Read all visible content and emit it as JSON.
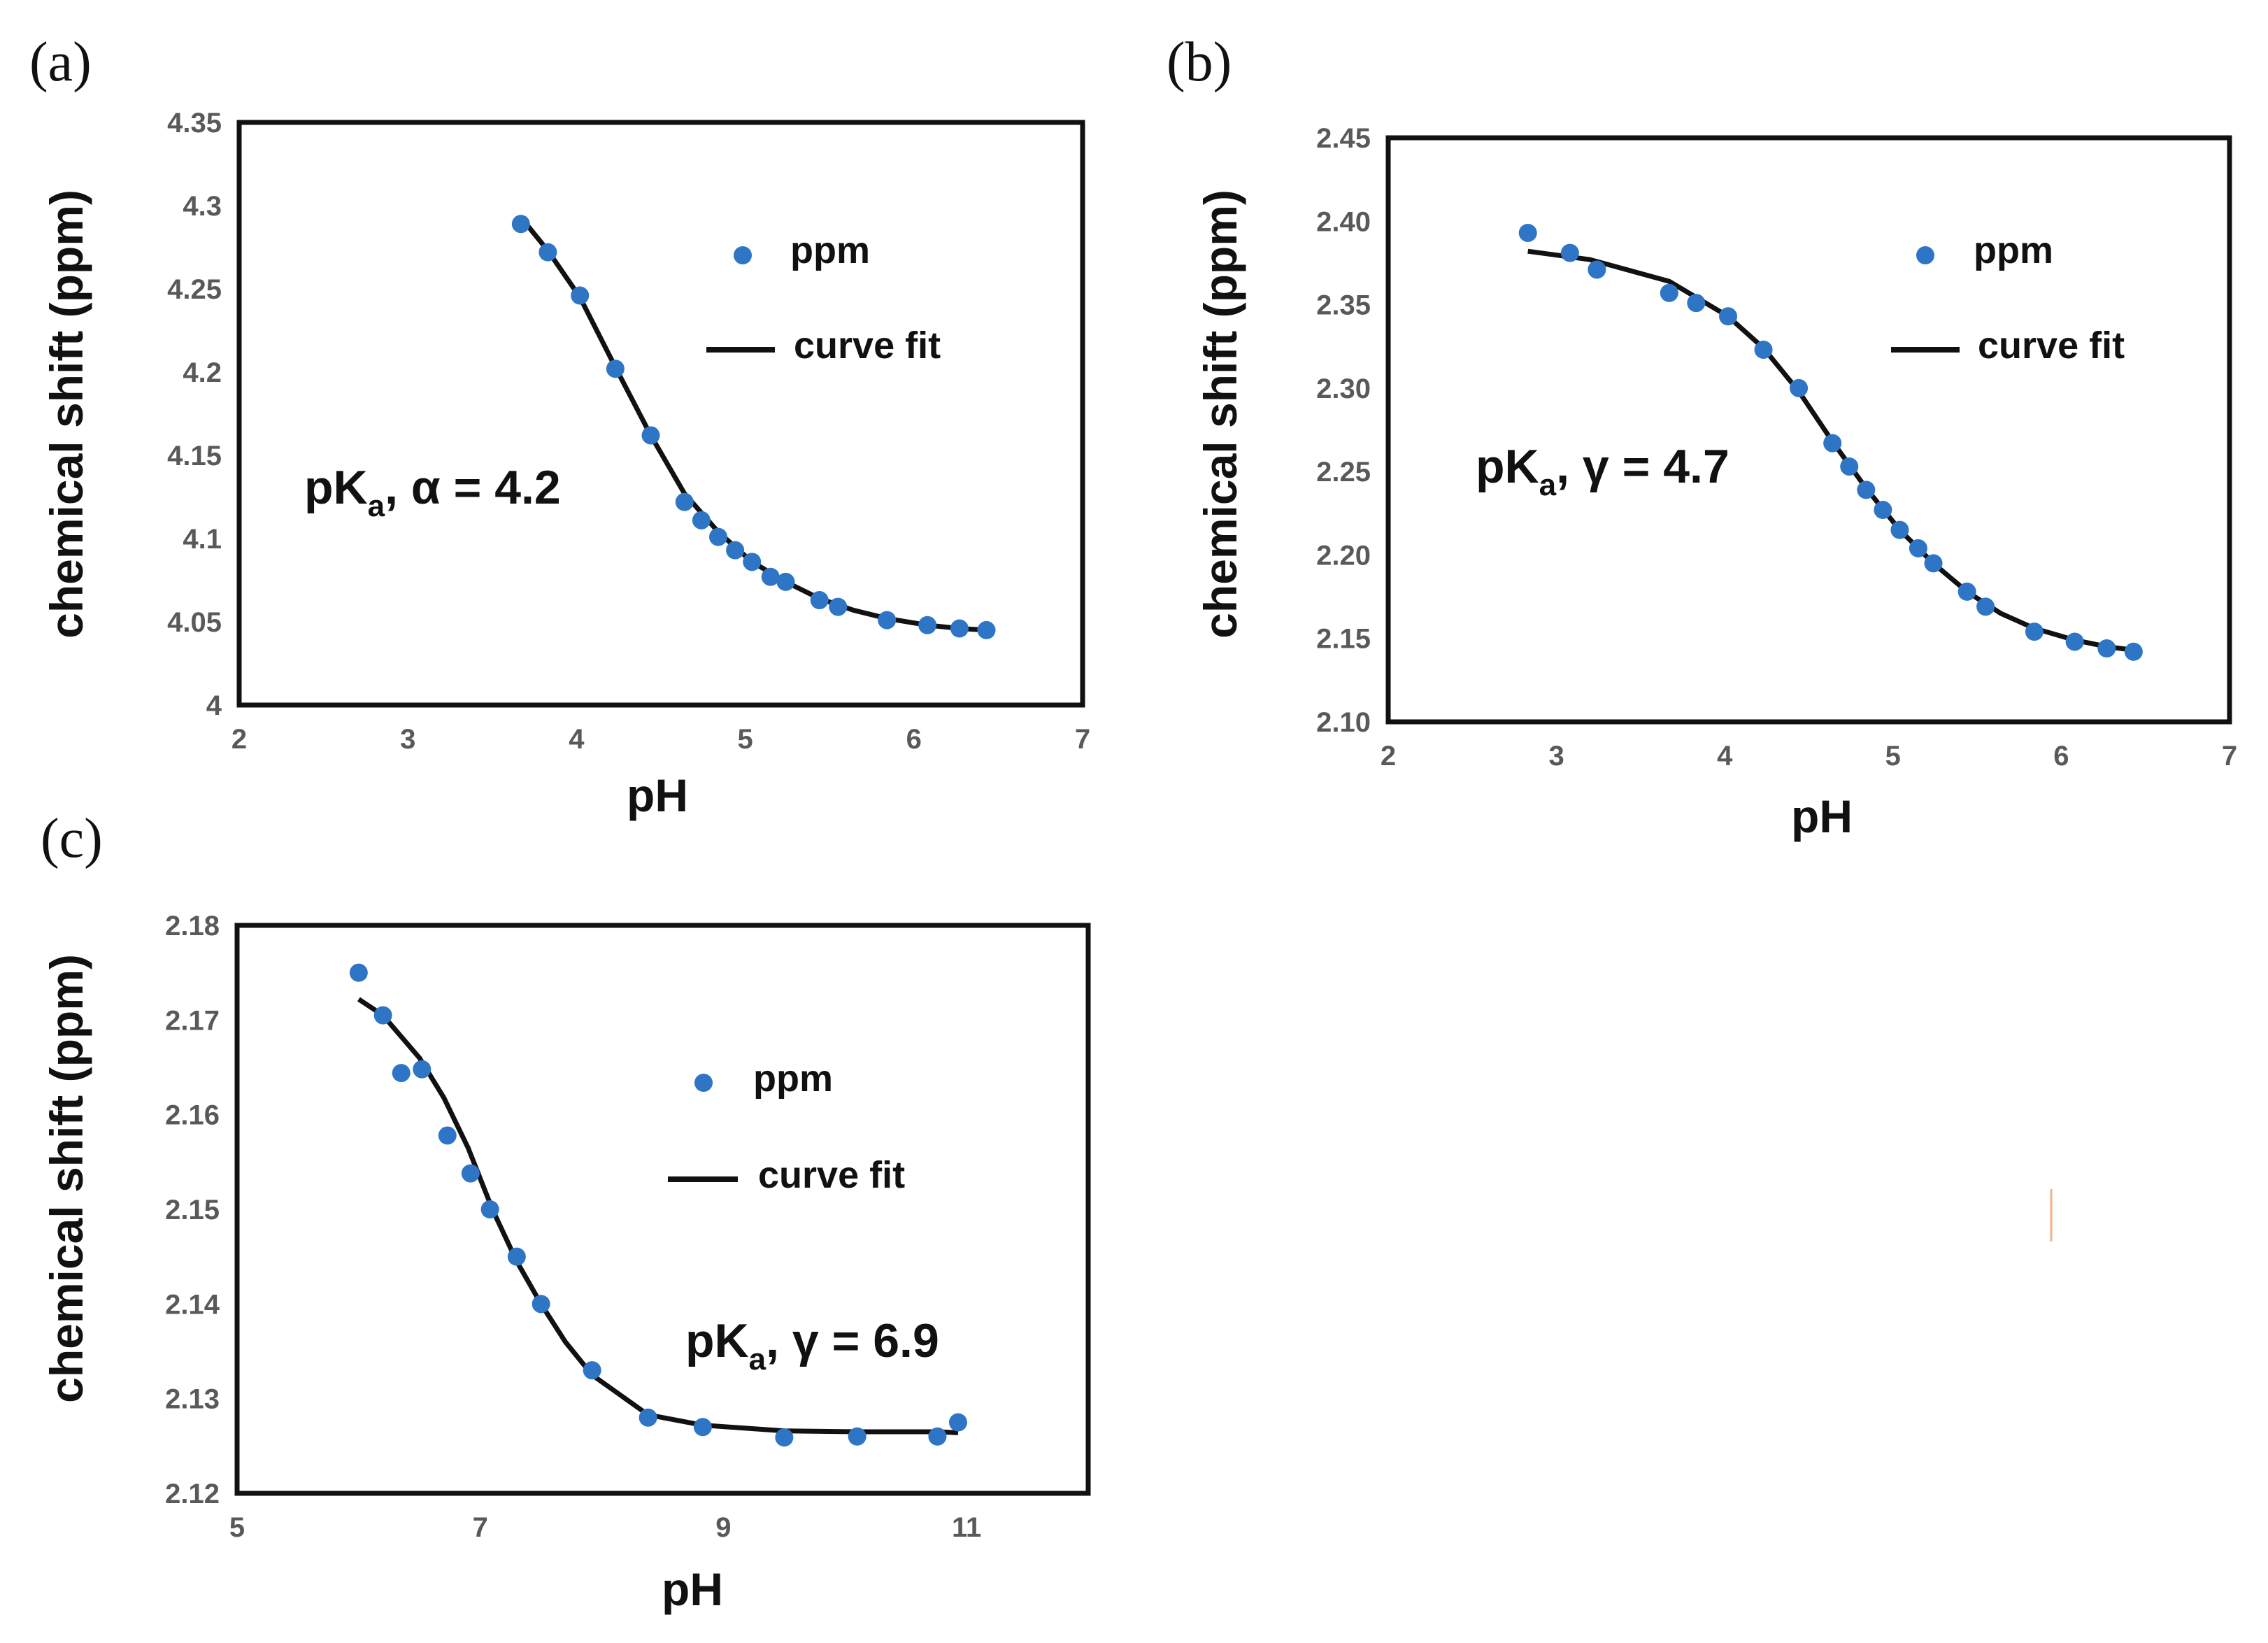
{
  "figure": {
    "panels": [
      {
        "label": "(a)",
        "annotation_prefix": "pK",
        "annotation_sub": "a",
        "annotation_suffix": ", α = 4.2"
      },
      {
        "label": "(b)",
        "annotation_prefix": "pK",
        "annotation_sub": "a",
        "annotation_suffix": ", γ = 4.7"
      },
      {
        "label": "(c)",
        "annotation_prefix": "pK",
        "annotation_sub": "a",
        "annotation_suffix": ", γ = 6.9"
      }
    ]
  },
  "colors": {
    "points": "#2E75C6",
    "fit": "#111111",
    "frame": "#111111",
    "stray_mark": "#F4B183"
  },
  "chart_data": [
    {
      "type": "scatter",
      "title": "",
      "xlabel": "pH",
      "ylabel": "chemical shift (ppm)",
      "xlim": [
        2,
        7
      ],
      "ylim": [
        4,
        4.35
      ],
      "xticks": [
        "2",
        "3",
        "4",
        "5",
        "6",
        "7"
      ],
      "yticks": [
        "4",
        "4.05",
        "4.1",
        "4.15",
        "4.2",
        "4.25",
        "4.3",
        "4.35"
      ],
      "legend": [
        "ppm",
        "curve fit"
      ],
      "legend_position": "top-right",
      "series": [
        {
          "name": "ppm",
          "kind": "points",
          "x": [
            3.67,
            3.83,
            4.02,
            4.23,
            4.44,
            4.64,
            4.74,
            4.84,
            4.94,
            5.04,
            5.15,
            5.24,
            5.44,
            5.55,
            5.84,
            6.08,
            6.27,
            6.43
          ],
          "y": [
            4.289,
            4.272,
            4.246,
            4.202,
            4.162,
            4.122,
            4.111,
            4.101,
            4.093,
            4.086,
            4.077,
            4.074,
            4.063,
            4.059,
            4.051,
            4.048,
            4.046,
            4.045
          ]
        },
        {
          "name": "curve fit",
          "kind": "line",
          "x": [
            3.67,
            3.83,
            4.02,
            4.23,
            4.44,
            4.64,
            4.84,
            5.04,
            5.24,
            5.44,
            5.64,
            5.84,
            6.08,
            6.27,
            6.43
          ],
          "y": [
            4.293,
            4.273,
            4.245,
            4.203,
            4.162,
            4.127,
            4.104,
            4.086,
            4.074,
            4.064,
            4.057,
            4.052,
            4.048,
            4.046,
            4.045
          ]
        }
      ]
    },
    {
      "type": "scatter",
      "title": "",
      "xlabel": "pH",
      "ylabel": "chemical shift (ppm)",
      "xlim": [
        2,
        7
      ],
      "ylim": [
        2.1,
        2.45
      ],
      "xticks": [
        "2",
        "3",
        "4",
        "5",
        "6",
        "7"
      ],
      "yticks": [
        "2.10",
        "2.15",
        "2.20",
        "2.25",
        "2.30",
        "2.35",
        "2.40",
        "2.45"
      ],
      "legend": [
        "ppm",
        "curve fit"
      ],
      "legend_position": "top-right",
      "series": [
        {
          "name": "ppm",
          "kind": "points",
          "x": [
            2.83,
            3.08,
            3.24,
            3.67,
            3.83,
            4.02,
            4.23,
            4.44,
            4.64,
            4.74,
            4.84,
            4.94,
            5.04,
            5.15,
            5.24,
            5.44,
            5.55,
            5.84,
            6.08,
            6.27,
            6.43
          ],
          "y": [
            2.393,
            2.381,
            2.371,
            2.357,
            2.351,
            2.343,
            2.323,
            2.3,
            2.267,
            2.253,
            2.239,
            2.227,
            2.215,
            2.204,
            2.195,
            2.178,
            2.169,
            2.154,
            2.148,
            2.144,
            2.142
          ]
        },
        {
          "name": "curve fit",
          "kind": "line",
          "x": [
            2.83,
            3.2,
            3.67,
            4.02,
            4.23,
            4.44,
            4.64,
            4.84,
            5.04,
            5.24,
            5.44,
            5.64,
            5.84,
            6.08,
            6.27,
            6.43
          ],
          "y": [
            2.382,
            2.377,
            2.364,
            2.343,
            2.324,
            2.298,
            2.268,
            2.24,
            2.215,
            2.195,
            2.178,
            2.165,
            2.156,
            2.149,
            2.145,
            2.143
          ]
        }
      ]
    },
    {
      "type": "scatter",
      "title": "",
      "xlabel": "pH",
      "ylabel": "chemical shift (ppm)",
      "xlim": [
        5,
        12
      ],
      "ylim": [
        2.12,
        2.18
      ],
      "xticks": [
        "5",
        "7",
        "9",
        "11"
      ],
      "xtick_values": [
        5,
        7,
        9,
        11
      ],
      "yticks": [
        "2.12",
        "2.13",
        "2.14",
        "2.15",
        "2.16",
        "2.17",
        "2.18"
      ],
      "legend": [
        "ppm",
        "curve fit"
      ],
      "legend_position": "top-right",
      "series": [
        {
          "name": "ppm",
          "kind": "points",
          "x": [
            6.0,
            6.2,
            6.35,
            6.52,
            6.73,
            6.92,
            7.08,
            7.3,
            7.5,
            7.92,
            8.38,
            8.83,
            9.5,
            10.1,
            10.76,
            10.93
          ],
          "y": [
            2.175,
            2.1705,
            2.1644,
            2.1648,
            2.1578,
            2.1538,
            2.15,
            2.145,
            2.14,
            2.133,
            2.128,
            2.127,
            2.1259,
            2.126,
            2.126,
            2.1275
          ]
        },
        {
          "name": "curve fit",
          "kind": "line",
          "x": [
            6.0,
            6.2,
            6.5,
            6.7,
            6.9,
            7.1,
            7.3,
            7.5,
            7.7,
            7.92,
            8.38,
            8.83,
            9.5,
            10.1,
            10.76,
            10.93
          ],
          "y": [
            2.1722,
            2.1705,
            2.166,
            2.1618,
            2.1565,
            2.15,
            2.1445,
            2.14,
            2.136,
            2.1325,
            2.1283,
            2.1272,
            2.1266,
            2.1265,
            2.1265,
            2.1264
          ]
        }
      ]
    }
  ]
}
